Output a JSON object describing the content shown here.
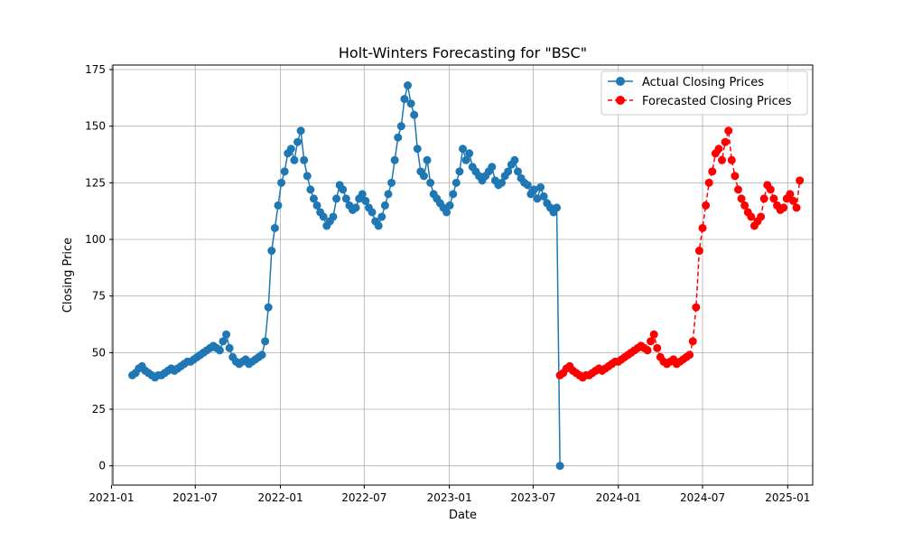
{
  "chart_data": {
    "type": "line",
    "title": "Holt-Winters Forecasting for \"BSC\"",
    "xlabel": "Date",
    "ylabel": "Closing Price",
    "xlim": [
      "2021-01-04",
      "2025-02-24"
    ],
    "ylim": [
      -8.5,
      177
    ],
    "x_ticks": [
      "2021-01-01",
      "2021-07-01",
      "2022-01-01",
      "2022-07-01",
      "2023-01-01",
      "2023-07-01",
      "2024-01-01",
      "2024-07-01",
      "2025-01-01"
    ],
    "x_tick_labels": [
      "2021-01",
      "2021-07",
      "2022-01",
      "2022-07",
      "2023-01",
      "2023-07",
      "2024-01",
      "2024-07",
      "2025-01"
    ],
    "y_ticks": [
      0,
      25,
      50,
      75,
      100,
      125,
      150,
      175
    ],
    "y_tick_labels": [
      "0",
      "25",
      "50",
      "75",
      "100",
      "125",
      "150",
      "175"
    ],
    "grid": true,
    "legend_position": "top-right",
    "series": [
      {
        "name": "Actual Closing Prices",
        "color": "#1f77b4",
        "line_style": "solid",
        "marker": "circle",
        "x": [
          "2021-02-15",
          "2021-02-22",
          "2021-03-01",
          "2021-03-08",
          "2021-03-15",
          "2021-03-22",
          "2021-03-29",
          "2021-04-05",
          "2021-04-12",
          "2021-04-19",
          "2021-04-26",
          "2021-05-03",
          "2021-05-10",
          "2021-05-17",
          "2021-05-24",
          "2021-05-31",
          "2021-06-07",
          "2021-06-14",
          "2021-06-21",
          "2021-06-28",
          "2021-07-05",
          "2021-07-12",
          "2021-07-19",
          "2021-07-26",
          "2021-08-02",
          "2021-08-09",
          "2021-08-16",
          "2021-08-23",
          "2021-08-30",
          "2021-09-06",
          "2021-09-13",
          "2021-09-20",
          "2021-09-27",
          "2021-10-04",
          "2021-10-11",
          "2021-10-18",
          "2021-10-25",
          "2021-11-01",
          "2021-11-08",
          "2021-11-15",
          "2021-11-22",
          "2021-11-29",
          "2021-12-06",
          "2021-12-13",
          "2021-12-20",
          "2021-12-27",
          "2022-01-03",
          "2022-01-10",
          "2022-01-17",
          "2022-01-24",
          "2022-01-31",
          "2022-02-07",
          "2022-02-14",
          "2022-02-21",
          "2022-02-28",
          "2022-03-07",
          "2022-03-14",
          "2022-03-21",
          "2022-03-28",
          "2022-04-04",
          "2022-04-11",
          "2022-04-18",
          "2022-04-25",
          "2022-05-02",
          "2022-05-09",
          "2022-05-16",
          "2022-05-23",
          "2022-05-30",
          "2022-06-06",
          "2022-06-13",
          "2022-06-20",
          "2022-06-27",
          "2022-07-04",
          "2022-07-11",
          "2022-07-18",
          "2022-07-25",
          "2022-08-01",
          "2022-08-08",
          "2022-08-15",
          "2022-08-22",
          "2022-08-29",
          "2022-09-05",
          "2022-09-12",
          "2022-09-19",
          "2022-09-26",
          "2022-10-03",
          "2022-10-10",
          "2022-10-17",
          "2022-10-24",
          "2022-10-31",
          "2022-11-07",
          "2022-11-14",
          "2022-11-21",
          "2022-11-28",
          "2022-12-05",
          "2022-12-12",
          "2022-12-19",
          "2022-12-26",
          "2023-01-02",
          "2023-01-09",
          "2023-01-16",
          "2023-01-23",
          "2023-01-30",
          "2023-02-06",
          "2023-02-13",
          "2023-02-20",
          "2023-02-27",
          "2023-03-06",
          "2023-03-13",
          "2023-03-20",
          "2023-03-27",
          "2023-04-03",
          "2023-04-10",
          "2023-04-17",
          "2023-04-24",
          "2023-05-01",
          "2023-05-08",
          "2023-05-15",
          "2023-05-22",
          "2023-05-29",
          "2023-06-05",
          "2023-06-12",
          "2023-06-19",
          "2023-06-26",
          "2023-07-03",
          "2023-07-10",
          "2023-07-17",
          "2023-07-24",
          "2023-07-31",
          "2023-08-07",
          "2023-08-14",
          "2023-08-21",
          "2023-08-28"
        ],
        "y": [
          40,
          41,
          43,
          44,
          42,
          41,
          40,
          39,
          40,
          40,
          41,
          42,
          43,
          42,
          43,
          44,
          45,
          46,
          46,
          47,
          48,
          49,
          50,
          51,
          52,
          53,
          52,
          51,
          55,
          58,
          52,
          48,
          46,
          45,
          46,
          47,
          45,
          46,
          47,
          48,
          49,
          55,
          70,
          95,
          105,
          115,
          125,
          130,
          138,
          140,
          135,
          143,
          148,
          135,
          128,
          122,
          118,
          115,
          112,
          110,
          106,
          108,
          110,
          118,
          124,
          122,
          118,
          115,
          113,
          114,
          118,
          120,
          117,
          114,
          112,
          108,
          106,
          110,
          115,
          120,
          125,
          135,
          145,
          150,
          162,
          168,
          160,
          155,
          140,
          130,
          128,
          135,
          125,
          120,
          118,
          116,
          114,
          112,
          115,
          120,
          125,
          130,
          140,
          135,
          138,
          132,
          130,
          128,
          126,
          128,
          130,
          132,
          126,
          124,
          125,
          128,
          130,
          133,
          135,
          130,
          127,
          125,
          124,
          120,
          122,
          118,
          123,
          119,
          116,
          114,
          112,
          114,
          0
        ]
      },
      {
        "name": "Forecasted Closing Prices",
        "color": "#ff0000",
        "line_style": "dashed",
        "marker": "circle",
        "x": [
          "2023-08-28",
          "2023-09-04",
          "2023-09-11",
          "2023-09-18",
          "2023-09-25",
          "2023-10-02",
          "2023-10-09",
          "2023-10-16",
          "2023-10-23",
          "2023-10-30",
          "2023-11-06",
          "2023-11-13",
          "2023-11-20",
          "2023-11-27",
          "2023-12-04",
          "2023-12-11",
          "2023-12-18",
          "2023-12-25",
          "2024-01-01",
          "2024-01-08",
          "2024-01-15",
          "2024-01-22",
          "2024-01-29",
          "2024-02-05",
          "2024-02-12",
          "2024-02-19",
          "2024-02-26",
          "2024-03-04",
          "2024-03-11",
          "2024-03-18",
          "2024-03-25",
          "2024-04-01",
          "2024-04-08",
          "2024-04-15",
          "2024-04-22",
          "2024-04-29",
          "2024-05-06",
          "2024-05-13",
          "2024-05-20",
          "2024-05-27",
          "2024-06-03",
          "2024-06-10",
          "2024-06-17",
          "2024-06-24",
          "2024-07-01",
          "2024-07-08",
          "2024-07-15",
          "2024-07-22",
          "2024-07-29",
          "2024-08-05",
          "2024-08-12",
          "2024-08-19",
          "2024-08-26",
          "2024-09-02",
          "2024-09-09",
          "2024-09-16",
          "2024-09-23",
          "2024-09-30",
          "2024-10-07",
          "2024-10-14",
          "2024-10-21",
          "2024-10-28",
          "2024-11-04",
          "2024-11-11",
          "2024-11-18",
          "2024-11-25",
          "2024-12-02",
          "2024-12-09",
          "2024-12-16",
          "2024-12-23",
          "2024-12-30",
          "2025-01-06",
          "2025-01-13",
          "2025-01-20",
          "2025-01-27"
        ],
        "y": [
          40,
          41,
          43,
          44,
          42,
          41,
          40,
          39,
          40,
          40,
          41,
          42,
          43,
          42,
          43,
          44,
          45,
          46,
          46,
          47,
          48,
          49,
          50,
          51,
          52,
          53,
          52,
          51,
          55,
          58,
          52,
          48,
          46,
          45,
          46,
          47,
          45,
          46,
          47,
          48,
          49,
          55,
          70,
          95,
          105,
          115,
          125,
          130,
          138,
          140,
          135,
          143,
          148,
          135,
          128,
          122,
          118,
          115,
          112,
          110,
          106,
          108,
          110,
          118,
          124,
          122,
          118,
          115,
          113,
          114,
          118,
          120,
          117,
          114,
          126
        ]
      }
    ]
  }
}
